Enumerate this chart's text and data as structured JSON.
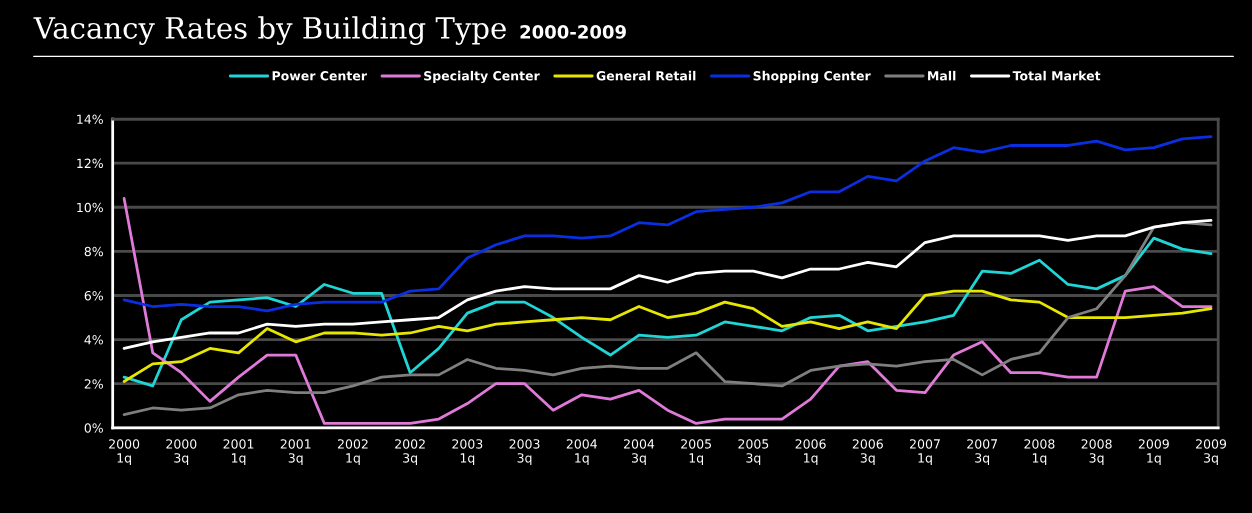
{
  "chart_data": {
    "type": "line",
    "title": "Vacancy Rates by Building Type",
    "subtitle": "2000-2009",
    "categories": [
      "2000\n1q",
      null,
      "2000\n3q",
      null,
      "2001\n1q",
      null,
      "2001\n3q",
      null,
      "2002\n1q",
      null,
      "2002\n3q",
      null,
      "2003\n1q",
      null,
      "2003\n3q",
      null,
      "2004\n1q",
      null,
      "2004\n3q",
      null,
      "2005\n1q",
      null,
      "2005\n3q",
      null,
      "2006\n1q",
      null,
      "2006\n3q",
      null,
      "2007\n1q",
      null,
      "2007\n3q",
      null,
      "2008\n1q",
      null,
      "2008\n3q",
      null,
      "2009\n1q",
      null,
      "2009\n3q"
    ],
    "series": [
      {
        "name": "Power Center",
        "color": "#1fd5d5",
        "values": [
          2.3,
          1.9,
          4.9,
          5.7,
          5.8,
          5.9,
          5.5,
          6.5,
          6.1,
          6.1,
          2.5,
          3.6,
          5.2,
          5.7,
          5.7,
          5.0,
          4.1,
          3.3,
          4.2,
          4.1,
          4.2,
          4.8,
          4.6,
          4.4,
          5.0,
          5.1,
          4.4,
          4.6,
          4.8,
          5.1,
          7.1,
          7.0,
          7.6,
          6.5,
          6.3,
          6.9,
          8.6,
          8.1,
          7.9
        ]
      },
      {
        "name": "Specialty Center",
        "color": "#e07ad8",
        "values": [
          10.4,
          3.4,
          2.5,
          1.2,
          2.3,
          3.3,
          3.3,
          0.2,
          0.2,
          0.2,
          0.2,
          0.4,
          1.1,
          2.0,
          2.0,
          0.8,
          1.5,
          1.3,
          1.7,
          0.8,
          0.2,
          0.4,
          0.4,
          0.4,
          1.3,
          2.8,
          3.0,
          1.7,
          1.6,
          3.3,
          3.9,
          2.5,
          2.5,
          2.3,
          2.3,
          6.2,
          6.4,
          5.5,
          5.5
        ]
      },
      {
        "name": "General Retail",
        "color": "#e6e600",
        "values": [
          2.1,
          2.9,
          3.0,
          3.6,
          3.4,
          4.5,
          3.9,
          4.3,
          4.3,
          4.2,
          4.3,
          4.6,
          4.4,
          4.7,
          4.8,
          4.9,
          5.0,
          4.9,
          5.5,
          5.0,
          5.2,
          5.7,
          5.4,
          4.6,
          4.8,
          4.5,
          4.8,
          4.5,
          6.0,
          6.2,
          6.2,
          5.8,
          5.7,
          5.0,
          5.0,
          5.0,
          5.1,
          5.2,
          5.4
        ]
      },
      {
        "name": "Shopping Center",
        "color": "#0a2fe0",
        "values": [
          5.8,
          5.5,
          5.6,
          5.5,
          5.5,
          5.3,
          5.6,
          5.7,
          5.7,
          5.7,
          6.2,
          6.3,
          7.7,
          8.3,
          8.7,
          8.7,
          8.6,
          8.7,
          9.3,
          9.2,
          9.8,
          9.9,
          10.0,
          10.2,
          10.7,
          10.7,
          11.4,
          11.2,
          12.1,
          12.7,
          12.5,
          12.8,
          12.8,
          12.8,
          13.0,
          12.6,
          12.7,
          13.1,
          13.2
        ]
      },
      {
        "name": "Mall",
        "color": "#7f7f7f",
        "values": [
          0.6,
          0.9,
          0.8,
          0.9,
          1.5,
          1.7,
          1.6,
          1.6,
          1.9,
          2.3,
          2.4,
          2.4,
          3.1,
          2.7,
          2.6,
          2.4,
          2.7,
          2.8,
          2.7,
          2.7,
          3.4,
          2.1,
          2.0,
          1.9,
          2.6,
          2.8,
          2.9,
          2.8,
          3.0,
          3.1,
          2.4,
          3.1,
          3.4,
          5.0,
          5.4,
          6.9,
          9.1,
          9.3,
          9.2
        ]
      },
      {
        "name": "Total Market",
        "color": "#ffffff",
        "values": [
          3.6,
          3.9,
          4.1,
          4.3,
          4.3,
          4.7,
          4.6,
          4.7,
          4.7,
          4.8,
          4.9,
          5.0,
          5.8,
          6.2,
          6.4,
          6.3,
          6.3,
          6.3,
          6.9,
          6.6,
          7.0,
          7.1,
          7.1,
          6.8,
          7.2,
          7.2,
          7.5,
          7.3,
          8.4,
          8.7,
          8.7,
          8.7,
          8.7,
          8.5,
          8.7,
          8.7,
          9.1,
          9.3,
          9.4
        ]
      }
    ],
    "ylim": [
      0,
      14
    ],
    "yticks": [
      {
        "value": 0,
        "label": "0%"
      },
      {
        "value": 2,
        "label": "2%"
      },
      {
        "value": 4,
        "label": "4%"
      },
      {
        "value": 6,
        "label": "6%"
      },
      {
        "value": 8,
        "label": "8%"
      },
      {
        "value": 10,
        "label": "10%"
      },
      {
        "value": 12,
        "label": "12%"
      },
      {
        "value": 14,
        "label": "14%"
      }
    ],
    "grid": "y",
    "legend": "top",
    "marker": "none",
    "line_style": "solid"
  }
}
